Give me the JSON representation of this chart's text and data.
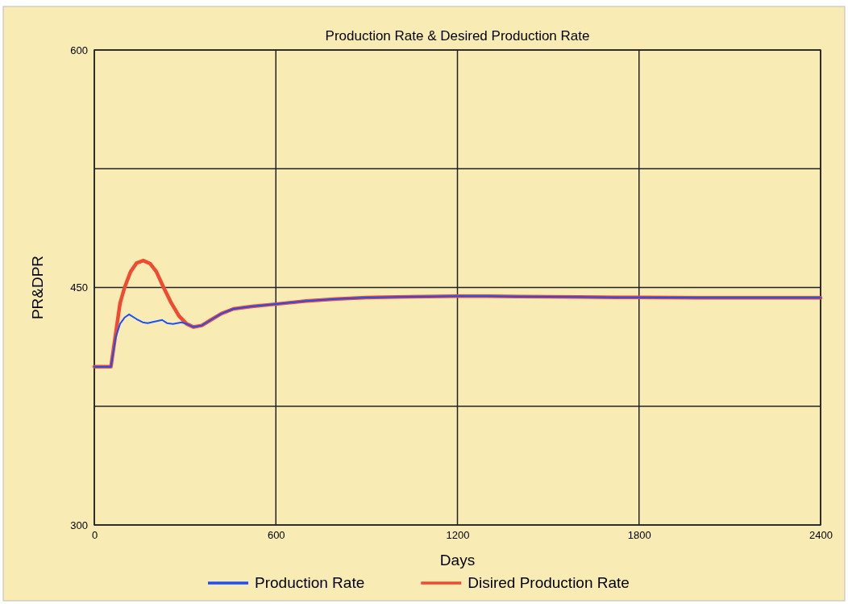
{
  "chart_data": {
    "type": "line",
    "title": "Production Rate & Desired Production Rate",
    "xlabel": "Days",
    "ylabel": "PR&DPR",
    "xlim": [
      0,
      2400
    ],
    "xticks": [
      0,
      600,
      1200,
      1800,
      2400
    ],
    "ylim": [
      300,
      600
    ],
    "yticks": [
      300,
      {
        "value": 375,
        "label": null
      },
      450,
      {
        "value": 525,
        "label": null
      },
      600
    ],
    "grid": true,
    "legend": "bottom",
    "line_style": "solid",
    "series": [
      {
        "name": "Production Rate",
        "color": "#1a4fff",
        "x": [
          0,
          55,
          70,
          85,
          100,
          115,
          140,
          160,
          176,
          200,
          224,
          240,
          260,
          288,
          305,
          328,
          355,
          385,
          420,
          460,
          520,
          600,
          700,
          800,
          900,
          1000,
          1100,
          1200,
          1300,
          1400,
          1600,
          1800,
          2000,
          2200,
          2400
        ],
        "values": [
          400,
          400,
          418,
          427,
          431,
          433,
          430,
          428,
          427.5,
          428.5,
          429.5,
          427.5,
          427,
          428,
          427,
          425,
          426,
          429.5,
          433.5,
          436.5,
          438,
          439.5,
          441.5,
          442.8,
          443.6,
          444,
          444.3,
          444.5,
          444.5,
          444.3,
          444,
          443.7,
          443.5,
          443.5,
          443.5
        ]
      },
      {
        "name": "Disired Production Rate",
        "color": "#f04a30",
        "x": [
          0,
          55,
          70,
          85,
          100,
          120,
          140,
          162,
          185,
          205,
          229,
          255,
          280,
          305,
          328,
          355,
          385,
          420,
          460,
          520,
          600,
          700,
          800,
          900,
          1000,
          1100,
          1200,
          1300,
          1400,
          1600,
          1800,
          2000,
          2200,
          2400
        ],
        "values": [
          400,
          400,
          420,
          440,
          450,
          460,
          465.5,
          467,
          465,
          460,
          450,
          440,
          432,
          427,
          425,
          426,
          429.5,
          433.5,
          436.5,
          438,
          439.5,
          441.5,
          442.8,
          443.6,
          444,
          444.3,
          444.5,
          444.5,
          444.3,
          444,
          443.7,
          443.5,
          443.5,
          443.5
        ]
      }
    ]
  }
}
